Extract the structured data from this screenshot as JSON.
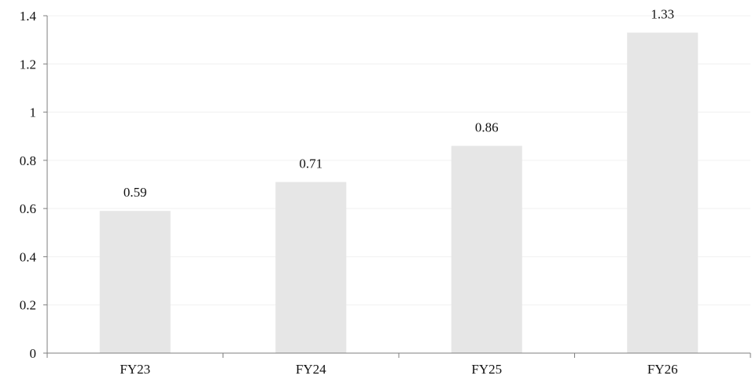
{
  "chart_data": {
    "type": "bar",
    "title": "",
    "xlabel": "",
    "ylabel": "",
    "categories": [
      "FY23",
      "FY24",
      "FY25",
      "FY26"
    ],
    "values": [
      0.59,
      0.71,
      0.86,
      1.33
    ],
    "data_labels": [
      "0.59",
      "0.71",
      "0.86",
      "1.33"
    ],
    "ylim": [
      0,
      1.4
    ],
    "y_ticks": [
      0,
      0.2,
      0.4,
      0.6,
      0.8,
      1,
      1.2,
      1.4
    ],
    "y_tick_labels": [
      "0",
      "0.2",
      "0.4",
      "0.6",
      "0.8",
      "1",
      "1.2",
      "1.4"
    ],
    "grid": true,
    "legend": "none",
    "colors": {
      "bar": "#e6e6e6",
      "axis": "#7f7f7f",
      "grid": "#f0f0f0",
      "text": "#111111"
    }
  }
}
